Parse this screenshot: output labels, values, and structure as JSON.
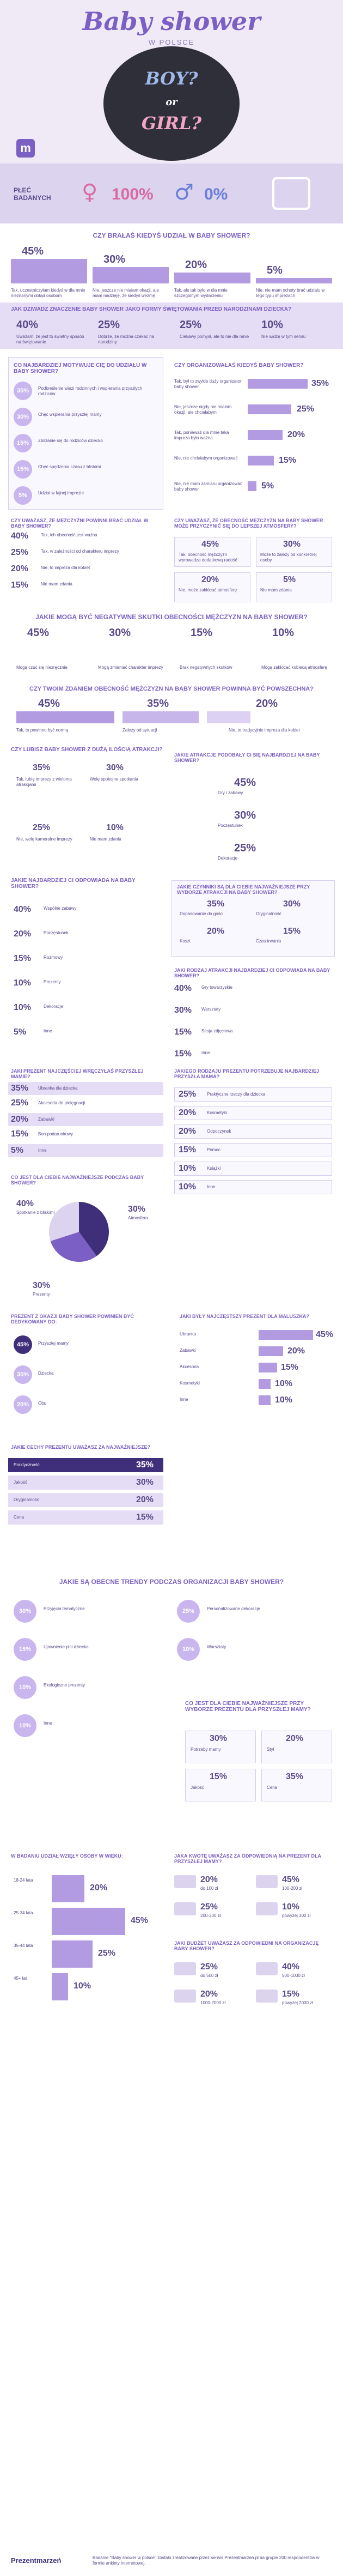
{
  "hero": {
    "title": "Baby shower",
    "subtitle": "W POLSCE",
    "balloon": "BOY? or GIRL?"
  },
  "gender": {
    "label": "PŁEĆ BADANYCH",
    "female_pct": "100%",
    "male_pct": "0%"
  },
  "q1": {
    "title": "CZY BRAŁAŚ KIEDYŚ UDZIAŁ W BABY SHOWER?",
    "items": [
      {
        "pct": "45%",
        "label": "Tak, uczestniczyłam kiedyś w dla mnie nieznanymi dotąd osobom"
      },
      {
        "pct": "30%",
        "label": "Nie, jeszcze nie miałam okazji, ale mam nadzieję, że kiedyś wezmę"
      },
      {
        "pct": "20%",
        "label": "Tak, ale tak było w dla mnie szczególnym wydarzeniu"
      },
      {
        "pct": "5%",
        "label": "Nie, nie mam ochoty brać udziału w tego typu imprezach"
      }
    ]
  },
  "q2": {
    "title": "JAK DZIWADZ ZNACZENIE BABY SHOWER JAKO FORMY ŚWIĘTOWANIA PRZED NARODZINAMI DZIECKA?",
    "items": [
      {
        "pct": "40%",
        "label": "Uważam, że jest to świetny sposób na świętowanie"
      },
      {
        "pct": "25%",
        "label": "Dobrze, że można czekać na narodziny"
      },
      {
        "pct": "25%",
        "label": "Ciekawy pomysł, ale to nie dla mnie"
      },
      {
        "pct": "10%",
        "label": "Nie widzę w tym sensu"
      }
    ]
  },
  "q3": {
    "title": "CO NAJBARDZIEJ MOTYWUJE CIĘ DO UDZIAŁU W BABY SHOWER?",
    "items": [
      {
        "pct": "35%",
        "label": "Podkreślenie więzi rodzinnych i wspierania przyszłych rodziców"
      },
      {
        "pct": "30%",
        "label": "Chęć wspierania przyszłej mamy"
      },
      {
        "pct": "15%",
        "label": "Zbliżanie się do rodziców dziecka"
      },
      {
        "pct": "15%",
        "label": "Chęć spędzenia czasu z bliskimi"
      },
      {
        "pct": "5%",
        "label": "Udział w fajnej imprezie"
      }
    ]
  },
  "q4": {
    "title": "CZY ORGANIZOWAŁAŚ KIEDYŚ BABY SHOWER?",
    "items": [
      {
        "pct": "35%",
        "label": "Tak, był to zwykle duży organizator baby shower"
      },
      {
        "pct": "25%",
        "label": "Nie, jeszcze nigdy nie miałam okazji, ale chciałabym"
      },
      {
        "pct": "20%",
        "label": "Tak, ponieważ dla mnie taka impreza była ważna"
      },
      {
        "pct": "15%",
        "label": "Nie, nie chciałabym organizować"
      },
      {
        "pct": "5%",
        "label": "Nie, nie mam zamiaru organizować baby shower"
      }
    ]
  },
  "q5": {
    "title": "CZY UWAŻASZ, ŻE MĘŻCZYŹNI POWINNI BRAĆ UDZIAŁ W BABY SHOWER?",
    "items": [
      {
        "pct": "40%",
        "label": "Tak, ich obecność jest ważna"
      },
      {
        "pct": "25%",
        "label": "Tak, w zależności od charakteru imprezy"
      },
      {
        "pct": "20%",
        "label": "Nie, to impreza dla kobiet"
      },
      {
        "pct": "15%",
        "label": "Nie mam zdania"
      }
    ]
  },
  "q6": {
    "title": "CZY UWAŻASZ, ŻE OBECNOŚĆ MĘŻCZYZN NA BABY SHOWER MOŻE PRZYCZYNIĆ SIĘ DO LEPSZEJ ATMOSFERY?",
    "items": [
      {
        "pct": "45%",
        "label": "Tak, obecność mężczyzn wprowadza dodatkową radość"
      },
      {
        "pct": "30%",
        "label": "Może to zależy od konkretnej osoby"
      },
      {
        "pct": "20%",
        "label": "Nie, może zakłócać atmosferę"
      },
      {
        "pct": "5%",
        "label": "Nie mam zdania"
      }
    ]
  },
  "q7": {
    "title": "JAKIE MOGĄ BYĆ NEGATYWNE SKUTKI OBECNOŚCI MĘŻCZYZN NA BABY SHOWER?",
    "items": [
      {
        "pct": "45%",
        "label": "Mogą czuć się niezręcznie"
      },
      {
        "pct": "30%",
        "label": "Mogą zmieniać charakter imprezy"
      },
      {
        "pct": "15%",
        "label": "Brak negatywnych skutków"
      },
      {
        "pct": "10%",
        "label": "Mogą zakłócać kobiecą atmosferę"
      }
    ]
  },
  "q8": {
    "title": "CZY TWOIM ZDANIEM OBECNOŚĆ MĘŻCZYZN NA BABY SHOWER POWINNA BYĆ POWSZECHNA?",
    "items": [
      {
        "pct": "45%",
        "label": "Tak, to powinno być normą"
      },
      {
        "pct": "35%",
        "label": "Zależy od sytuacji"
      },
      {
        "pct": "20%",
        "label": "Nie, to tradycyjnie impreza dla kobiet"
      }
    ]
  },
  "q9": {
    "title": "CZY LUBISZ BABY SHOWER Z DUŻĄ ILOŚCIĄ ATRAKCJI?",
    "items": [
      {
        "pct": "35%",
        "label": "Tak, lubię imprezy z wieloma atrakcjami"
      },
      {
        "pct": "30%",
        "label": "Wolę spokojne spotkania"
      },
      {
        "pct": "25%",
        "label": "Nie, wolę kameralne imprezy"
      },
      {
        "pct": "10%",
        "label": "Nie mam zdania"
      }
    ]
  },
  "q10": {
    "title": "JAKIE ATRAKCJE PODOBAŁY CI SIĘ NAJBARDZIEJ NA BABY SHOWER?",
    "items": [
      {
        "pct": "45%",
        "label": "Gry i zabawy"
      },
      {
        "pct": "30%",
        "label": "Poczęstunek"
      },
      {
        "pct": "25%",
        "label": "Dekoracje"
      }
    ]
  },
  "q11": {
    "title": "JAKIE NAJBARDZIEJ CI ODPOWIADA NA BABY SHOWER?",
    "items": [
      {
        "pct": "40%",
        "label": "Wspólne zabawy"
      },
      {
        "pct": "20%",
        "label": "Poczęstunek"
      },
      {
        "pct": "15%",
        "label": "Rozmowy"
      },
      {
        "pct": "10%",
        "label": "Prezenty"
      },
      {
        "pct": "10%",
        "label": "Dekoracje"
      },
      {
        "pct": "5%",
        "label": "Inne"
      }
    ]
  },
  "q12": {
    "title": "JAKIE CZYNNIKI SĄ DLA CIEBIE NAJWAŻNIEJSZE PRZY WYBORZE ATRAKCJI NA BABY SHOWER?",
    "items": [
      {
        "pct": "35%",
        "label": "Dopasowanie do gości"
      },
      {
        "pct": "30%",
        "label": "Oryginalność"
      },
      {
        "pct": "20%",
        "label": "Koszt"
      },
      {
        "pct": "15%",
        "label": "Czas trwania"
      }
    ]
  },
  "q13": {
    "title": "JAKI RODZAJ ATRAKCJI NAJBARDZIEJ CI ODPOWIADA NA BABY SHOWER?",
    "items": [
      {
        "pct": "40%",
        "label": "Gry towarzyskie"
      },
      {
        "pct": "30%",
        "label": "Warsztaty"
      },
      {
        "pct": "15%",
        "label": "Sesja zdjęciowa"
      },
      {
        "pct": "15%",
        "label": "Inne"
      }
    ]
  },
  "q14": {
    "title": "JAKI PREZENT NAJCZĘŚCIEJ WRĘCZYŁAŚ PRZYSZŁEJ MAMIE?",
    "items": [
      {
        "pct": "35%",
        "label": "Ubranka dla dziecka"
      },
      {
        "pct": "25%",
        "label": "Akcesoria do pielęgnacji"
      },
      {
        "pct": "20%",
        "label": "Zabawki"
      },
      {
        "pct": "15%",
        "label": "Bon podarunkowy"
      },
      {
        "pct": "5%",
        "label": "Inne"
      }
    ]
  },
  "q15": {
    "title": "JAKIEGO RODZAJU PREZENTU POTRZEBUJE NAJBARDZIEJ PRZYSZŁA MAMA?",
    "items": [
      {
        "pct": "25%",
        "label": "Praktyczne rzeczy dla dziecka"
      },
      {
        "pct": "20%",
        "label": "Kosmetyki"
      },
      {
        "pct": "20%",
        "label": "Odpoczynek"
      },
      {
        "pct": "15%",
        "label": "Pomoc"
      },
      {
        "pct": "10%",
        "label": "Książki"
      },
      {
        "pct": "10%",
        "label": "Inne"
      }
    ]
  },
  "q16": {
    "title": "CO JEST DLA CIEBIE NAJWAŻNIEJSZE PODCZAS BABY SHOWER?",
    "items": [
      {
        "pct": "40%",
        "label": "Spotkanie z bliskimi"
      },
      {
        "pct": "30%",
        "label": "Atmosfera"
      },
      {
        "pct": "30%",
        "label": "Prezenty"
      }
    ]
  },
  "q17": {
    "title": "PREZENT Z OKAZJI BABY SHOWER POWINIEN BYĆ DEDYKOWANY DO:",
    "items": [
      {
        "pct": "45%",
        "label": "Przyszłej mamy"
      },
      {
        "pct": "35%",
        "label": "Dziecka"
      },
      {
        "pct": "20%",
        "label": "Obu"
      }
    ]
  },
  "q18": {
    "title": "JAKI BYŁY NAJCZĘSTSZY PREZENT DLA MALUSZKA?",
    "items": [
      {
        "pct": "45%",
        "label": "Ubranka"
      },
      {
        "pct": "20%",
        "label": "Zabawki"
      },
      {
        "pct": "15%",
        "label": "Akcesoria"
      },
      {
        "pct": "10%",
        "label": "Kosmetyki"
      },
      {
        "pct": "10%",
        "label": "Inne"
      }
    ]
  },
  "q19": {
    "title": "JAKIE CECHY PREZENTU UWAŻASZ ZA NAJWAŻNIEJSZE?",
    "items": [
      {
        "pct": "35%",
        "label": "Praktyczność"
      },
      {
        "pct": "30%",
        "label": "Jakość"
      },
      {
        "pct": "20%",
        "label": "Oryginalność"
      },
      {
        "pct": "15%",
        "label": "Cena"
      }
    ]
  },
  "q20": {
    "title": "JAKIE SĄ OBECNE TRENDY PODCZAS ORGANIZACJI BABY SHOWER?",
    "items": [
      {
        "pct": "30%",
        "label": "Przyjęcia tematyczne"
      },
      {
        "pct": "25%",
        "label": "Personalizowane dekoracje"
      },
      {
        "pct": "15%",
        "label": "Ujawnienie płci dziecka"
      },
      {
        "pct": "10%",
        "label": "Warsztaty"
      },
      {
        "pct": "10%",
        "label": "Ekologiczne prezenty"
      },
      {
        "pct": "10%",
        "label": "Inne"
      }
    ]
  },
  "q21": {
    "title": "CO JEST DLA CIEBIE NAJWAŻNIEJSZE PRZY WYBORZE PREZENTU DLA PRZYSZŁEJ MAMY?",
    "items": [
      {
        "pct": "30%",
        "label": "Potrzeby mamy"
      },
      {
        "pct": "20%",
        "label": "Styl"
      },
      {
        "pct": "15%",
        "label": "Jakość"
      },
      {
        "pct": "35%",
        "label": "Cena"
      }
    ]
  },
  "q22": {
    "title": "W BADANIU UDZIAŁ WZIĘŁY OSOBY W WIEKU:",
    "items": [
      {
        "pct": "20%",
        "label": "18-24 lata"
      },
      {
        "pct": "45%",
        "label": "25-34 lata"
      },
      {
        "pct": "25%",
        "label": "35-44 lata"
      },
      {
        "pct": "10%",
        "label": "45+ lat"
      }
    ]
  },
  "q23": {
    "title": "JAKA KWOTĘ UWAŻASZ ZA ODPOWIEDNIĄ NA PREZENT DLA PRZYSZŁEJ MAMY?",
    "items": [
      {
        "pct": "20%",
        "label": "do 100 zł"
      },
      {
        "pct": "45%",
        "label": "100-200 zł"
      },
      {
        "pct": "25%",
        "label": "200-300 zł"
      },
      {
        "pct": "10%",
        "label": "powyżej 300 zł"
      }
    ]
  },
  "q24": {
    "title": "JAKI BUDŻET UWAŻASZ ZA ODPOWIEDNI NA ORGANIZACJĘ BABY SHOWER?",
    "items": [
      {
        "pct": "25%",
        "label": "do 500 zł"
      },
      {
        "pct": "40%",
        "label": "500-1000 zł"
      },
      {
        "pct": "20%",
        "label": "1000-2000 zł"
      },
      {
        "pct": "15%",
        "label": "powyżej 2000 zł"
      }
    ]
  },
  "footer": {
    "logo": "Prezentmarzeń",
    "note": "Badanie \"Baby shower w polsce\" zostało zrealizowane przez serwis Prezentmarzeń.pl na grupie 200 respondentów w formie ankiety internetowej."
  },
  "colors": {
    "primary": "#7b5fc4",
    "light": "#dcd3ef",
    "accent": "#b29be0",
    "dark": "#3f2f7a"
  },
  "chart_data": [
    {
      "type": "bar",
      "title": "CZY BRAŁAŚ KIEDYŚ UDZIAŁ W BABY SHOWER?",
      "categories": [
        "Tak, uczestniczyłam",
        "Nie, jeszcze nie",
        "Tak, szczególne",
        "Nie, nie mam ochoty"
      ],
      "values": [
        45,
        30,
        20,
        5
      ]
    },
    {
      "type": "bar",
      "title": "CZY ORGANIZOWAŁAŚ KIEDYŚ BABY SHOWER?",
      "categories": [
        "Tak, duży",
        "Nie, jeszcze nie",
        "Tak, ważna",
        "Nie, nie chciałabym",
        "Nie, nie mam zamiaru"
      ],
      "values": [
        35,
        25,
        20,
        15,
        5
      ]
    },
    {
      "type": "pie",
      "title": "CO JEST DLA CIEBIE NAJWAŻNIEJSZE PODCZAS BABY SHOWER?",
      "categories": [
        "Spotkanie z bliskimi",
        "Atmosfera",
        "Prezenty"
      ],
      "values": [
        40,
        30,
        30
      ]
    }
  ]
}
